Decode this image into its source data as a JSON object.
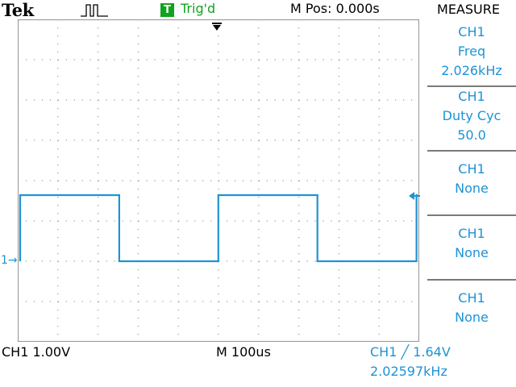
{
  "header": {
    "brand": "Tek",
    "acquisition_icon": "pulse-waveform-icon",
    "trigger_badge": "T",
    "trigger_status": "Trig'd",
    "main_position": "M Pos: 0.000s"
  },
  "measure": {
    "title": "MEASURE",
    "items": [
      {
        "channel": "CH1",
        "type": "Freq",
        "value": "2.026kHz"
      },
      {
        "channel": "CH1",
        "type": "Duty Cyc",
        "value": "50.0"
      },
      {
        "channel": "CH1",
        "type": "None",
        "value": ""
      },
      {
        "channel": "CH1",
        "type": "None",
        "value": ""
      },
      {
        "channel": "CH1",
        "type": "None",
        "value": ""
      }
    ]
  },
  "footer": {
    "ch1_scale": "CH1  1.00V",
    "timebase": "M 100us",
    "trigger": "CH1 ╱ 1.64V",
    "trigger_frequency": "2.02597kHz"
  },
  "markers": {
    "channel_ground": "1→"
  },
  "colors": {
    "trace": "#1d93d6",
    "trigger": "#10a31e",
    "grid": "#9a9a9a"
  },
  "waveform": {
    "type": "square",
    "volts_per_div": 1.0,
    "time_per_div_us": 100,
    "high_v": 1.64,
    "low_v": 0.0,
    "frequency_khz": 2.026,
    "duty_percent": 50.0
  }
}
